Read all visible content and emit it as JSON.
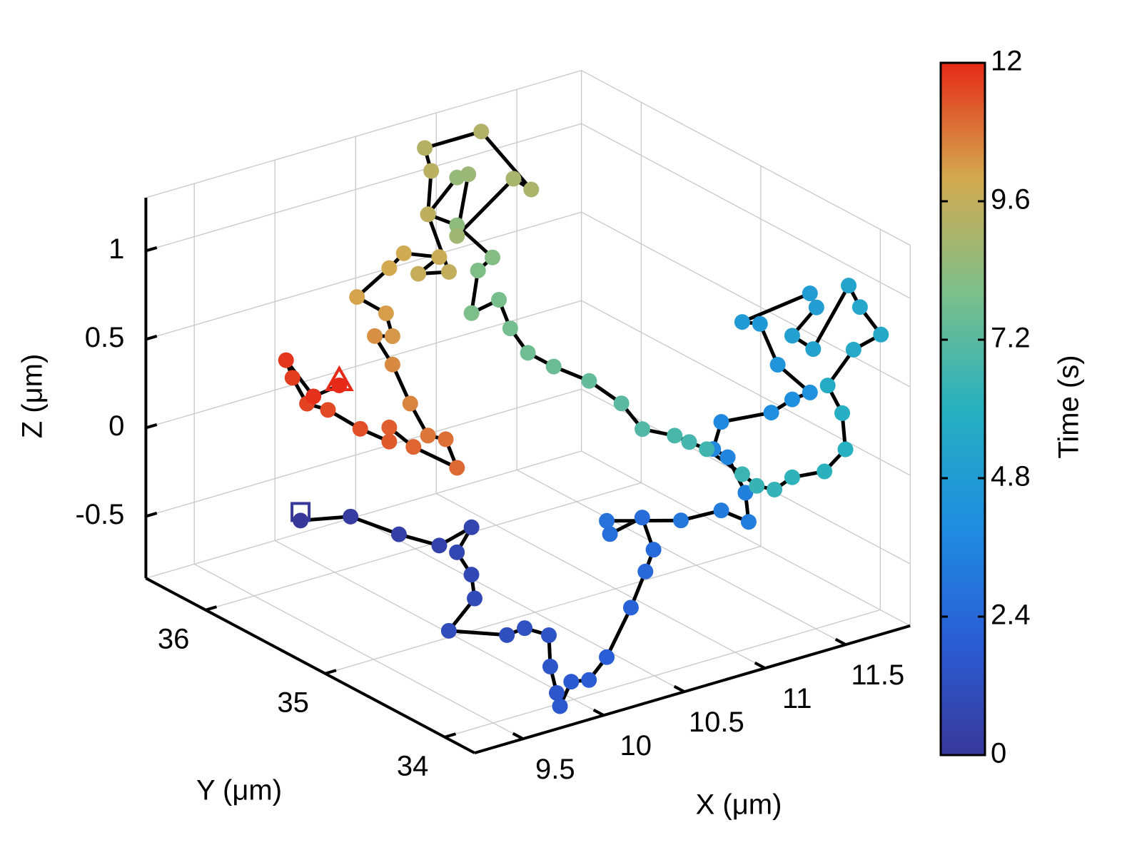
{
  "chart_data": {
    "type": "line3d",
    "xlabel": "X (μm)",
    "ylabel": "Y (μm)",
    "zlabel": "Z (μm)",
    "xlim": [
      9.2,
      11.9
    ],
    "ylim": [
      33.75,
      36.5
    ],
    "zlim": [
      -0.85,
      1.3
    ],
    "xticks": [
      9.5,
      10,
      10.5,
      11,
      11.5
    ],
    "yticks": [
      34,
      35,
      36
    ],
    "zticks": [
      -0.5,
      0,
      0.5,
      1
    ],
    "grid": true,
    "line_color": "#000000",
    "start_marker": "square",
    "end_marker": "triangle",
    "series": [
      {
        "x": [
          9.64,
          9.95,
          10.25,
          10.5,
          10.7,
          9.72,
          9.81,
          9.83,
          9.67,
          10.03,
          10.14,
          10.29,
          9.78,
          9.82,
          9.84,
          9.91,
          10.02,
          10.13,
          10.28,
          10.37,
          10.42,
          10.35,
          10.15,
          10.13,
          10.59,
          10.84,
          11.01,
          10.99,
          10.88,
          10.79,
          10.84,
          11.15,
          11.28,
          11.39,
          11.19,
          11.08,
          10.97,
          11.39,
          11.43,
          11.28,
          11.41,
          11.63,
          11.7,
          11.83,
          11.66,
          11.5,
          11.59,
          11.61,
          11.48,
          11.28,
          11.17,
          11.06,
          10.97,
          10.75,
          11.16,
          11.07,
          10.87,
          10.74,
          10.54,
          10.32,
          10.16,
          10.94,
          10.87,
          10.7,
          10.74,
          10.83,
          10.61,
          10.43,
          10.61,
          10.68,
          10.61,
          10.96,
          11.07,
          10.76,
          10.41,
          10.45,
          10.43,
          10.56,
          10.37,
          10.5,
          10.28,
          10.19,
          9.99,
          10.17,
          10.21,
          10.1,
          10.21,
          10.32,
          10.43,
          10.54,
          10.61,
          10.34,
          10.19,
          10.19,
          10.01,
          9.81,
          9.68,
          9.59,
          9.55,
          9.72,
          9.88
        ],
        "y": [
          35.8,
          35.8,
          35.8,
          35.8,
          35.8,
          34.6,
          34.6,
          34.6,
          34.6,
          34.6,
          34.6,
          34.6,
          33.9,
          33.9,
          33.9,
          33.9,
          33.9,
          33.9,
          33.9,
          33.9,
          33.9,
          33.9,
          33.9,
          33.9,
          33.9,
          33.9,
          33.9,
          33.9,
          33.9,
          33.9,
          33.9,
          33.9,
          33.9,
          33.9,
          33.9,
          33.9,
          33.9,
          33.9,
          33.9,
          33.9,
          33.9,
          33.9,
          33.9,
          33.9,
          33.9,
          33.9,
          33.9,
          33.9,
          33.9,
          33.9,
          33.9,
          33.9,
          33.9,
          33.9,
          34.6,
          34.6,
          34.6,
          34.6,
          34.6,
          34.6,
          34.6,
          35.8,
          35.8,
          35.8,
          35.8,
          35.8,
          35.8,
          35.8,
          35.8,
          35.8,
          35.8,
          35.8,
          35.8,
          35.8,
          35.8,
          35.8,
          35.8,
          35.8,
          35.8,
          35.8,
          35.8,
          35.8,
          35.8,
          35.8,
          35.8,
          35.8,
          35.8,
          35.8,
          35.8,
          35.8,
          35.8,
          35.8,
          35.8,
          35.8,
          35.8,
          35.8,
          35.8,
          35.8,
          35.8,
          35.8,
          35.8
        ],
        "z": [
          -0.39,
          -0.45,
          -0.63,
          -0.76,
          -0.71,
          -0.16,
          -0.31,
          -0.45,
          -0.59,
          -0.71,
          -0.7,
          -0.78,
          -0.57,
          -0.73,
          -0.81,
          -0.69,
          -0.71,
          -0.61,
          -0.37,
          -0.19,
          -0.08,
          0.12,
          0.08,
          0.16,
          0.04,
          0.03,
          -0.08,
          0.09,
          0.32,
          0.39,
          0.53,
          0.5,
          0.54,
          0.55,
          0.76,
          1.02,
          1.06,
          1.11,
          1.02,
          0.9,
          0.79,
          1.09,
          0.95,
          0.76,
          0.72,
          0.56,
          0.38,
          0.17,
          0.08,
          0.1,
          0.06,
          0.11,
          0.2,
          0.4,
          0.08,
          0.14,
          0.23,
          0.41,
          0.59,
          0.73,
          0.85,
          0.35,
          0.53,
          0.5,
          0.73,
          0.78,
          1.02,
          1.13,
          1.29,
          1.29,
          0.96,
          1.19,
          1.1,
          1.51,
          1.51,
          1.37,
          1.13,
          0.77,
          0.81,
          0.87,
          0.95,
          0.89,
          0.78,
          0.64,
          0.5,
          0.53,
          0.34,
          0.09,
          -0.12,
          -0.17,
          -0.35,
          -0.16,
          -0.01,
          -0.09,
          0.03,
          0.19,
          0.26,
          0.43,
          0.54,
          0.29,
          0.31
        ],
        "t": [
          0,
          0.2,
          0.4,
          0.6,
          0.7,
          0.8,
          0.9,
          1,
          1.1,
          1.2,
          1.3,
          1.4,
          1.5,
          1.6,
          1.7,
          1.8,
          1.9,
          2,
          2.2,
          2.4,
          2.5,
          2.6,
          2.7,
          2.8,
          3,
          3.2,
          3.3,
          3.4,
          3.6,
          3.7,
          3.8,
          4,
          4.1,
          4.2,
          4.4,
          4.6,
          4.7,
          4.8,
          4.9,
          5,
          5.1,
          5.3,
          5.4,
          5.5,
          5.6,
          5.7,
          5.9,
          6,
          6.1,
          6.2,
          6.3,
          6.4,
          6.5,
          6.6,
          6.7,
          6.8,
          7,
          7.2,
          7.4,
          7.6,
          7.7,
          7.8,
          7.9,
          8,
          8.1,
          8.2,
          8.4,
          8.5,
          8.6,
          8.7,
          8.8,
          9,
          9.1,
          9.2,
          9.3,
          9.4,
          9.5,
          9.6,
          9.7,
          9.8,
          9.9,
          10,
          10.1,
          10.2,
          10.3,
          10.4,
          10.5,
          10.6,
          10.8,
          10.9,
          11,
          11.1,
          11.2,
          11.25,
          11.4,
          11.5,
          11.6,
          11.7,
          11.8,
          11.9,
          12
        ]
      }
    ],
    "colorbar": {
      "label": "Time (s)",
      "clim": [
        0,
        12
      ],
      "ticks": [
        0,
        2.4,
        4.8,
        7.2,
        9.6,
        12
      ],
      "colormap": [
        "#38389a",
        "#2a5ed6",
        "#1f8ee0",
        "#27b0c0",
        "#7cbf8a",
        "#d4aa50",
        "#e62a18"
      ]
    }
  }
}
